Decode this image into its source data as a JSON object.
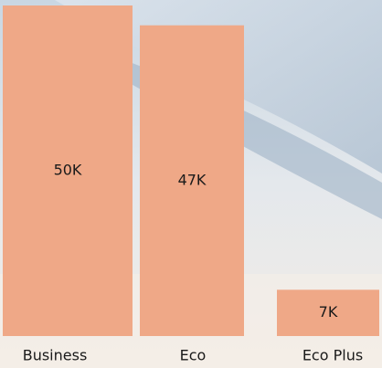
{
  "chart_data": {
    "type": "bar",
    "categories": [
      "Business",
      "Eco",
      "Eco Plus"
    ],
    "values": [
      50000,
      47000,
      7000
    ],
    "value_labels": [
      "50K",
      "47K",
      "7K"
    ],
    "color": "#efa887"
  }
}
